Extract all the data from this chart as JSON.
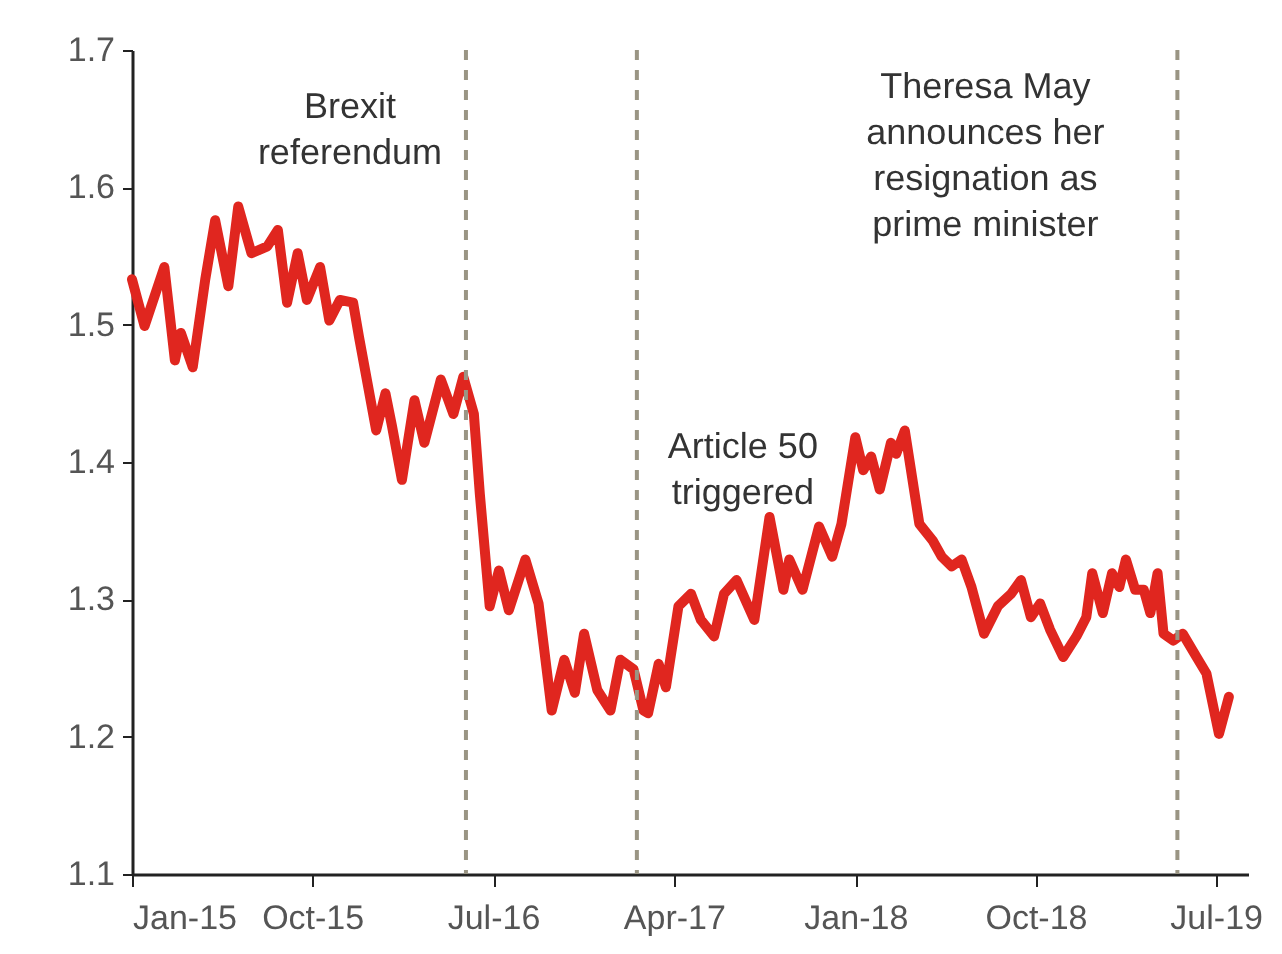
{
  "chart_data": {
    "type": "line",
    "x": [
      "2015-01-01",
      "2015-01-20",
      "2015-02-19",
      "2015-03-07",
      "2015-03-16",
      "2015-04-03",
      "2015-04-22",
      "2015-05-07",
      "2015-05-27",
      "2015-06-11",
      "2015-07-01",
      "2015-07-25",
      "2015-08-10",
      "2015-08-24",
      "2015-09-09",
      "2015-09-23",
      "2015-10-13",
      "2015-10-27",
      "2015-11-12",
      "2015-12-02",
      "2015-12-11",
      "2016-01-06",
      "2016-01-20",
      "2016-01-30",
      "2016-02-14",
      "2016-03-04",
      "2016-03-19",
      "2016-04-13",
      "2016-05-02",
      "2016-05-17",
      "2016-06-02",
      "2016-06-11",
      "2016-06-26",
      "2016-07-10",
      "2016-07-25",
      "2016-08-19",
      "2016-09-08",
      "2016-09-28",
      "2016-10-17",
      "2016-11-02",
      "2016-11-16",
      "2016-12-06",
      "2016-12-26",
      "2017-01-10",
      "2017-01-30",
      "2017-02-14",
      "2017-02-21",
      "2017-03-09",
      "2017-03-20",
      "2017-04-08",
      "2017-04-27",
      "2017-05-12",
      "2017-06-01",
      "2017-06-16",
      "2017-07-05",
      "2017-08-01",
      "2017-08-24",
      "2017-09-14",
      "2017-09-23",
      "2017-10-13",
      "2017-11-07",
      "2017-11-27",
      "2017-12-11",
      "2018-01-01",
      "2018-01-13",
      "2018-01-25",
      "2018-02-07",
      "2018-02-24",
      "2018-03-04",
      "2018-03-17",
      "2018-04-08",
      "2018-04-28",
      "2018-05-12",
      "2018-05-27",
      "2018-06-11",
      "2018-06-26",
      "2018-07-15",
      "2018-08-05",
      "2018-08-25",
      "2018-09-09",
      "2018-09-24",
      "2018-10-08",
      "2018-10-23",
      "2018-11-12",
      "2018-12-02",
      "2018-12-17",
      "2018-12-26",
      "2019-01-11",
      "2019-01-25",
      "2019-02-05",
      "2019-02-15",
      "2019-03-01",
      "2019-03-14",
      "2019-03-24",
      "2019-04-04",
      "2019-04-13",
      "2019-04-28",
      "2019-05-12",
      "2019-06-02",
      "2019-06-17",
      "2019-07-06",
      "2019-07-21"
    ],
    "series": [
      {
        "color": "#e0261f",
        "values": [
          1.533,
          1.499,
          1.542,
          1.474,
          1.494,
          1.469,
          1.533,
          1.576,
          1.528,
          1.586,
          1.552,
          1.557,
          1.569,
          1.516,
          1.552,
          1.518,
          1.542,
          1.503,
          1.518,
          1.516,
          1.491,
          1.423,
          1.45,
          1.426,
          1.387,
          1.445,
          1.414,
          1.46,
          1.435,
          1.462,
          1.435,
          1.377,
          1.295,
          1.321,
          1.292,
          1.329,
          1.297,
          1.219,
          1.256,
          1.232,
          1.275,
          1.234,
          1.219,
          1.256,
          1.249,
          1.219,
          1.217,
          1.253,
          1.236,
          1.295,
          1.304,
          1.285,
          1.273,
          1.304,
          1.314,
          1.285,
          1.36,
          1.307,
          1.329,
          1.307,
          1.353,
          1.331,
          1.355,
          1.418,
          1.394,
          1.404,
          1.38,
          1.414,
          1.406,
          1.423,
          1.355,
          1.343,
          1.331,
          1.324,
          1.329,
          1.309,
          1.275,
          1.295,
          1.304,
          1.314,
          1.287,
          1.297,
          1.278,
          1.258,
          1.273,
          1.287,
          1.319,
          1.29,
          1.319,
          1.309,
          1.329,
          1.307,
          1.307,
          1.29,
          1.319,
          1.275,
          1.27,
          1.275,
          1.258,
          1.246,
          1.202,
          1.229
        ]
      }
    ],
    "xlim": [
      "2015-01-01",
      "2019-08-19"
    ],
    "xticks": [
      {
        "value": "2015-01-01",
        "label": "Jan-15"
      },
      {
        "value": "2015-10-01",
        "label": "Oct-15"
      },
      {
        "value": "2016-07-01",
        "label": "Jul-16"
      },
      {
        "value": "2017-04-01",
        "label": "Apr-17"
      },
      {
        "value": "2018-01-01",
        "label": "Jan-18"
      },
      {
        "value": "2018-10-01",
        "label": "Oct-18"
      },
      {
        "value": "2019-07-01",
        "label": "Jul-19"
      }
    ],
    "ylim": [
      1.1,
      1.7
    ],
    "yticks": [
      1.1,
      1.2,
      1.3,
      1.4,
      1.5,
      1.6,
      1.7
    ],
    "ref_lines": [
      {
        "axis": "x",
        "value": "2016-05-21",
        "label": "Brexit referendum",
        "color": "#9a9584",
        "line_style": "dashed"
      },
      {
        "axis": "x",
        "value": "2017-02-04",
        "label": "Article 50 triggered",
        "color": "#9a9584",
        "line_style": "dashed"
      },
      {
        "axis": "x",
        "value": "2019-05-04",
        "label": "Theresa May announces her resignation as prime minister",
        "color": "#9a9584",
        "line_style": "dashed"
      }
    ],
    "grid": false,
    "line_style": "solid"
  }
}
